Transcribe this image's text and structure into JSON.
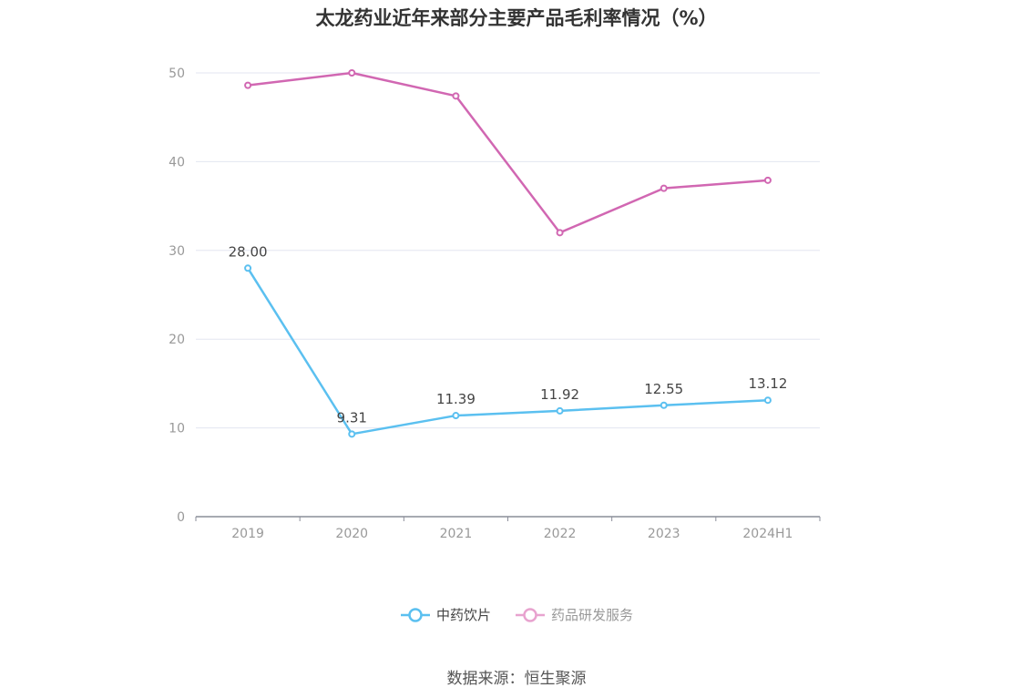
{
  "title": "太龙药业近年来部分主要产品毛利率情况（%）",
  "source": "数据来源：恒生聚源",
  "chart_data": {
    "type": "line",
    "title": "太龙药业近年来部分主要产品毛利率情况（%）",
    "categories": [
      "2019",
      "2020",
      "2021",
      "2022",
      "2023",
      "2024H1"
    ],
    "ylim": [
      0,
      50
    ],
    "yticks": [
      0,
      10,
      20,
      30,
      40,
      50
    ],
    "grid": true,
    "legend_position": "bottom",
    "series": [
      {
        "name": "中药饮片",
        "color": "#5bc0f0",
        "values": [
          28.0,
          9.31,
          11.39,
          11.92,
          12.55,
          13.12
        ],
        "labels": [
          "28.00",
          "9.31",
          "11.39",
          "11.92",
          "12.55",
          "13.12"
        ],
        "show_labels": true,
        "active": true
      },
      {
        "name": "药品研发服务",
        "color": "#d167b2",
        "legend_color": "#e8a3cf",
        "values": [
          48.6,
          50.0,
          47.4,
          32.0,
          37.0,
          37.9
        ],
        "show_labels": false,
        "active": false
      }
    ]
  }
}
